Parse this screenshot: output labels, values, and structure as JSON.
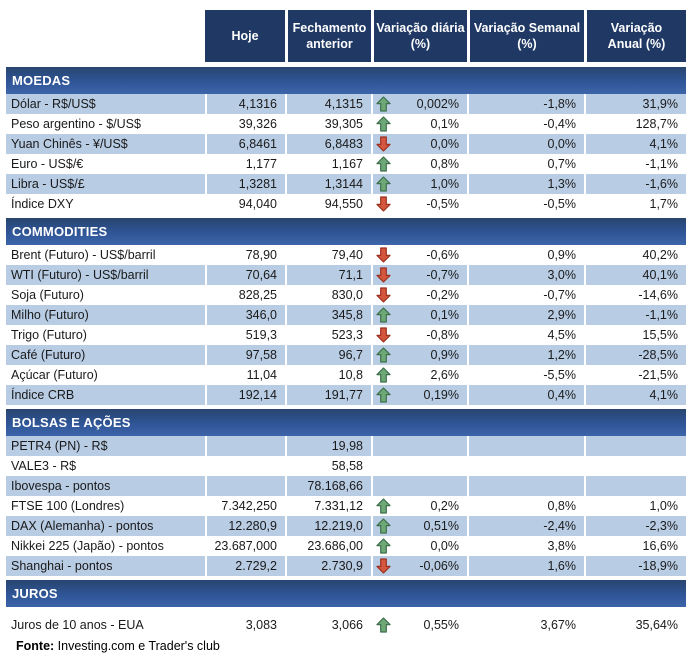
{
  "header": {
    "columns": [
      "Hoje",
      "Fechamento\nanterior",
      "Variação diária\n(%)",
      "Variação Semanal\n(%)",
      "Variação\nAnual (%)"
    ]
  },
  "sections": [
    {
      "title": "MOEDAS",
      "rows": [
        {
          "label": "Dólar - R$/US$",
          "hoje": "4,1316",
          "fechamento": "4,1315",
          "arrow": "up",
          "daily": "0,002%",
          "weekly": "-1,8%",
          "annual": "31,9%"
        },
        {
          "label": "Peso argentino - $/US$",
          "hoje": "39,326",
          "fechamento": "39,305",
          "arrow": "up",
          "daily": "0,1%",
          "weekly": "-0,4%",
          "annual": "128,7%"
        },
        {
          "label": "Yuan Chinês - ¥/US$",
          "hoje": "6,8461",
          "fechamento": "6,8483",
          "arrow": "down",
          "daily": "0,0%",
          "weekly": "0,0%",
          "annual": "4,1%"
        },
        {
          "label": "Euro - US$/€",
          "hoje": "1,177",
          "fechamento": "1,167",
          "arrow": "up",
          "daily": "0,8%",
          "weekly": "0,7%",
          "annual": "-1,1%"
        },
        {
          "label": "Libra - US$/£",
          "hoje": "1,3281",
          "fechamento": "1,3144",
          "arrow": "up",
          "daily": "1,0%",
          "weekly": "1,3%",
          "annual": "-1,6%"
        },
        {
          "label": "Índice DXY",
          "hoje": "94,040",
          "fechamento": "94,550",
          "arrow": "down",
          "daily": "-0,5%",
          "weekly": "-0,5%",
          "annual": "1,7%"
        }
      ]
    },
    {
      "title": "COMMODITIES",
      "rows": [
        {
          "label": "Brent (Futuro) - US$/barril",
          "hoje": "78,90",
          "fechamento": "79,40",
          "arrow": "down",
          "daily": "-0,6%",
          "weekly": "0,9%",
          "annual": "40,2%"
        },
        {
          "label": "WTI (Futuro) - US$/barril",
          "hoje": "70,64",
          "fechamento": "71,1",
          "arrow": "down",
          "daily": "-0,7%",
          "weekly": "3,0%",
          "annual": "40,1%"
        },
        {
          "label": "Soja (Futuro)",
          "hoje": "828,25",
          "fechamento": "830,0",
          "arrow": "down",
          "daily": "-0,2%",
          "weekly": "-0,7%",
          "annual": "-14,6%"
        },
        {
          "label": "Milho (Futuro)",
          "hoje": "346,0",
          "fechamento": "345,8",
          "arrow": "up",
          "daily": "0,1%",
          "weekly": "2,9%",
          "annual": "-1,1%"
        },
        {
          "label": "Trigo (Futuro)",
          "hoje": "519,3",
          "fechamento": "523,3",
          "arrow": "down",
          "daily": "-0,8%",
          "weekly": "4,5%",
          "annual": "15,5%"
        },
        {
          "label": "Café (Futuro)",
          "hoje": "97,58",
          "fechamento": "96,7",
          "arrow": "up",
          "daily": "0,9%",
          "weekly": "1,2%",
          "annual": "-28,5%"
        },
        {
          "label": "Açúcar (Futuro)",
          "hoje": "11,04",
          "fechamento": "10,8",
          "arrow": "up",
          "daily": "2,6%",
          "weekly": "-5,5%",
          "annual": "-21,5%"
        },
        {
          "label": "Índice CRB",
          "hoje": "192,14",
          "fechamento": "191,77",
          "arrow": "up",
          "daily": "0,19%",
          "weekly": "0,4%",
          "annual": "4,1%"
        }
      ]
    },
    {
      "title": "BOLSAS E AÇÕES",
      "rows": [
        {
          "label": "PETR4 (PN) - R$",
          "hoje": "",
          "fechamento": "19,98",
          "arrow": "",
          "daily": "",
          "weekly": "",
          "annual": ""
        },
        {
          "label": "VALE3 - R$",
          "hoje": "",
          "fechamento": "58,58",
          "arrow": "",
          "daily": "",
          "weekly": "",
          "annual": ""
        },
        {
          "label": "Ibovespa - pontos",
          "hoje": "",
          "fechamento": "78.168,66",
          "arrow": "",
          "daily": "",
          "weekly": "",
          "annual": ""
        },
        {
          "label": "FTSE 100 (Londres)",
          "hoje": "7.342,250",
          "fechamento": "7.331,12",
          "arrow": "up",
          "daily": "0,2%",
          "weekly": "0,8%",
          "annual": "1,0%"
        },
        {
          "label": "DAX (Alemanha) - pontos",
          "hoje": "12.280,9",
          "fechamento": "12.219,0",
          "arrow": "up",
          "daily": "0,51%",
          "weekly": "-2,4%",
          "annual": "-2,3%"
        },
        {
          "label": "Nikkei 225 (Japão) - pontos",
          "hoje": "23.687,000",
          "fechamento": "23.686,00",
          "arrow": "up",
          "daily": "0,0%",
          "weekly": "3,8%",
          "annual": "16,6%"
        },
        {
          "label": "Shanghai - pontos",
          "hoje": "2.729,2",
          "fechamento": "2.730,9",
          "arrow": "down",
          "daily": "-0,06%",
          "weekly": "1,6%",
          "annual": "-18,9%"
        }
      ]
    },
    {
      "title": "JUROS",
      "rows": [
        {
          "label": "Juros de 10 anos - EUA",
          "hoje": "3,083",
          "fechamento": "3,066",
          "arrow": "up",
          "daily": "0,55%",
          "weekly": "3,67%",
          "annual": "35,64%"
        }
      ]
    }
  ],
  "footer": {
    "label": "Fonte:",
    "text": " Investing.com e Trader's club"
  },
  "colors": {
    "header_bg": "#1F3864",
    "section_band_bg": "#2F5597",
    "row_shaded_bg": "#B8CCE4",
    "row_plain_bg": "#FFFFFF",
    "arrow_up": "#6EA877",
    "arrow_down": "#D4563E"
  }
}
